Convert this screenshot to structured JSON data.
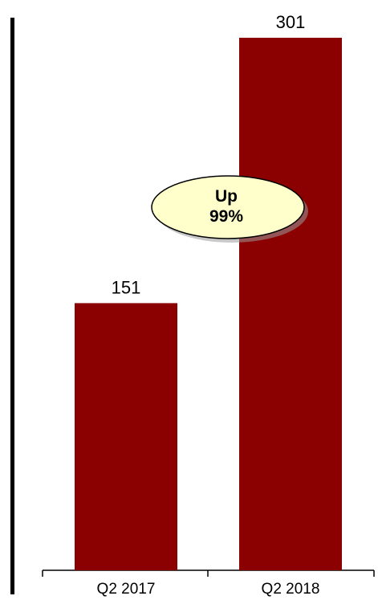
{
  "chart_data": {
    "type": "bar",
    "categories": [
      "Q2 2017",
      "Q2 2018"
    ],
    "values": [
      151,
      301
    ],
    "data_labels": [
      "151",
      "301"
    ],
    "title": "",
    "xlabel": "",
    "ylabel": "",
    "ylim": [
      0,
      320
    ],
    "grid": false,
    "legend": "none",
    "bar_color": "#8b0000",
    "axis_color": "#000000",
    "annotation": {
      "line1": "Up",
      "line2": "99%",
      "fill": "#ffffcc",
      "stroke": "#000000"
    }
  }
}
